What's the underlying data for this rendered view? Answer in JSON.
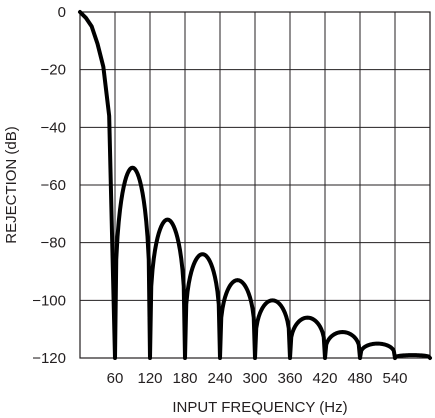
{
  "chart_data": {
    "type": "line",
    "title": "",
    "xlabel": "INPUT FREQUENCY (Hz)",
    "ylabel": "REJECTION (dB)",
    "xlim": [
      0,
      600
    ],
    "ylim": [
      -120,
      0
    ],
    "x_ticks": [
      60,
      120,
      180,
      240,
      300,
      360,
      420,
      480,
      540
    ],
    "y_ticks": [
      0,
      -20,
      -40,
      -60,
      -80,
      -100,
      -120
    ],
    "grid": true,
    "legend": "none",
    "colors": {
      "curve": "#000000",
      "grid": "#231f20",
      "text": "#231f20"
    },
    "series": [
      {
        "sinc_order": 1,
        "notch_spacing": 60,
        "main_lobe": [
          [
            0,
            0
          ],
          [
            10,
            -2
          ],
          [
            20,
            -5
          ],
          [
            30,
            -11
          ],
          [
            40,
            -19
          ],
          [
            50,
            -36
          ],
          [
            60,
            -120
          ]
        ],
        "side_lobe_peaks": [
          [
            90,
            -54
          ],
          [
            150,
            -72
          ],
          [
            210,
            -84
          ],
          [
            270,
            -93
          ],
          [
            330,
            -100
          ],
          [
            390,
            -106
          ],
          [
            450,
            -111
          ],
          [
            510,
            -115
          ],
          [
            570,
            -119
          ]
        ]
      }
    ]
  }
}
